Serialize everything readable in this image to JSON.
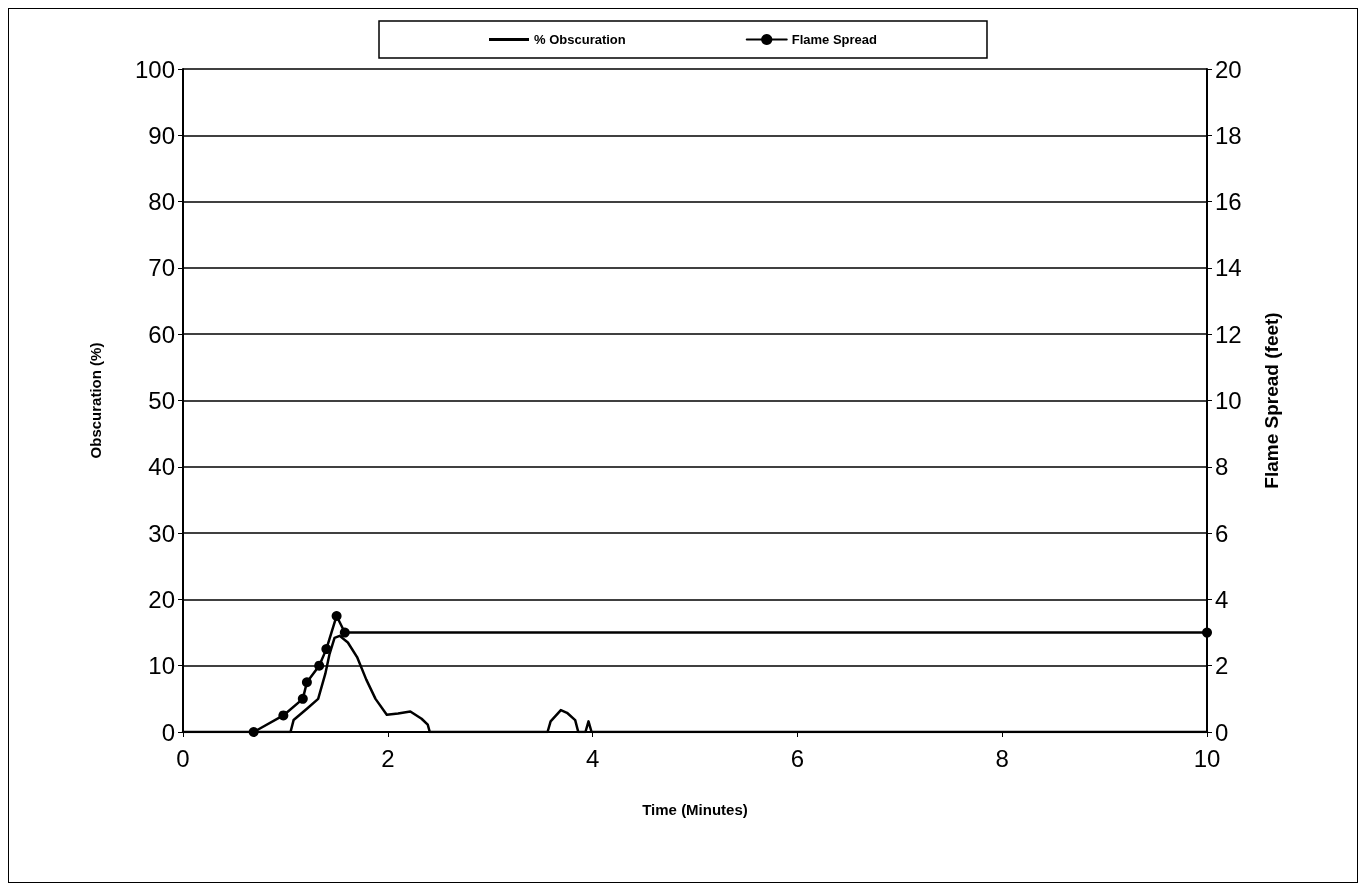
{
  "chart_data": {
    "type": "line",
    "xlabel": "Time (Minutes)",
    "ylabel": "Obscuration (%)",
    "y2label": "Flame Spread (feet)",
    "xlim": [
      0,
      10
    ],
    "xticks": [
      0,
      2,
      4,
      6,
      8,
      10
    ],
    "ylim": [
      0,
      100
    ],
    "yticks": [
      0,
      10,
      20,
      30,
      40,
      50,
      60,
      70,
      80,
      90,
      100
    ],
    "y2lim": [
      0,
      20
    ],
    "y2ticks": [
      0,
      2,
      4,
      6,
      8,
      10,
      12,
      14,
      16,
      18,
      20
    ],
    "grid": "y",
    "legend": "top",
    "line_style": "solid",
    "series": [
      {
        "name": "% Obscuration",
        "color": "#000000",
        "marker": "none",
        "x": [
          0,
          1.05,
          1.08,
          1.21,
          1.32,
          1.39,
          1.43,
          1.48,
          1.53,
          1.61,
          1.7,
          1.79,
          1.88,
          1.99,
          2.1,
          2.22,
          2.33,
          2.39,
          2.41,
          3.56,
          3.59,
          3.69,
          3.75,
          3.83,
          3.86,
          3.93,
          3.96,
          3.99,
          10
        ],
        "values": [
          0,
          0,
          1.8,
          3.5,
          5,
          8.8,
          11.7,
          14.2,
          14.5,
          13.5,
          11.3,
          7.9,
          5,
          2.6,
          2.8,
          3.1,
          2,
          1.1,
          0,
          0,
          1.6,
          3.3,
          2.9,
          1.8,
          0,
          0,
          1.6,
          0,
          0
        ]
      },
      {
        "name": "Flame Spread",
        "color": "#000000",
        "marker": "circle",
        "axis": "y2",
        "x": [
          0.69,
          0.98,
          1.17,
          1.21,
          1.33,
          1.4,
          1.5,
          1.58,
          10
        ],
        "values": [
          0,
          0.5,
          1,
          1.5,
          2,
          2.5,
          3.5,
          3,
          3
        ]
      }
    ]
  }
}
